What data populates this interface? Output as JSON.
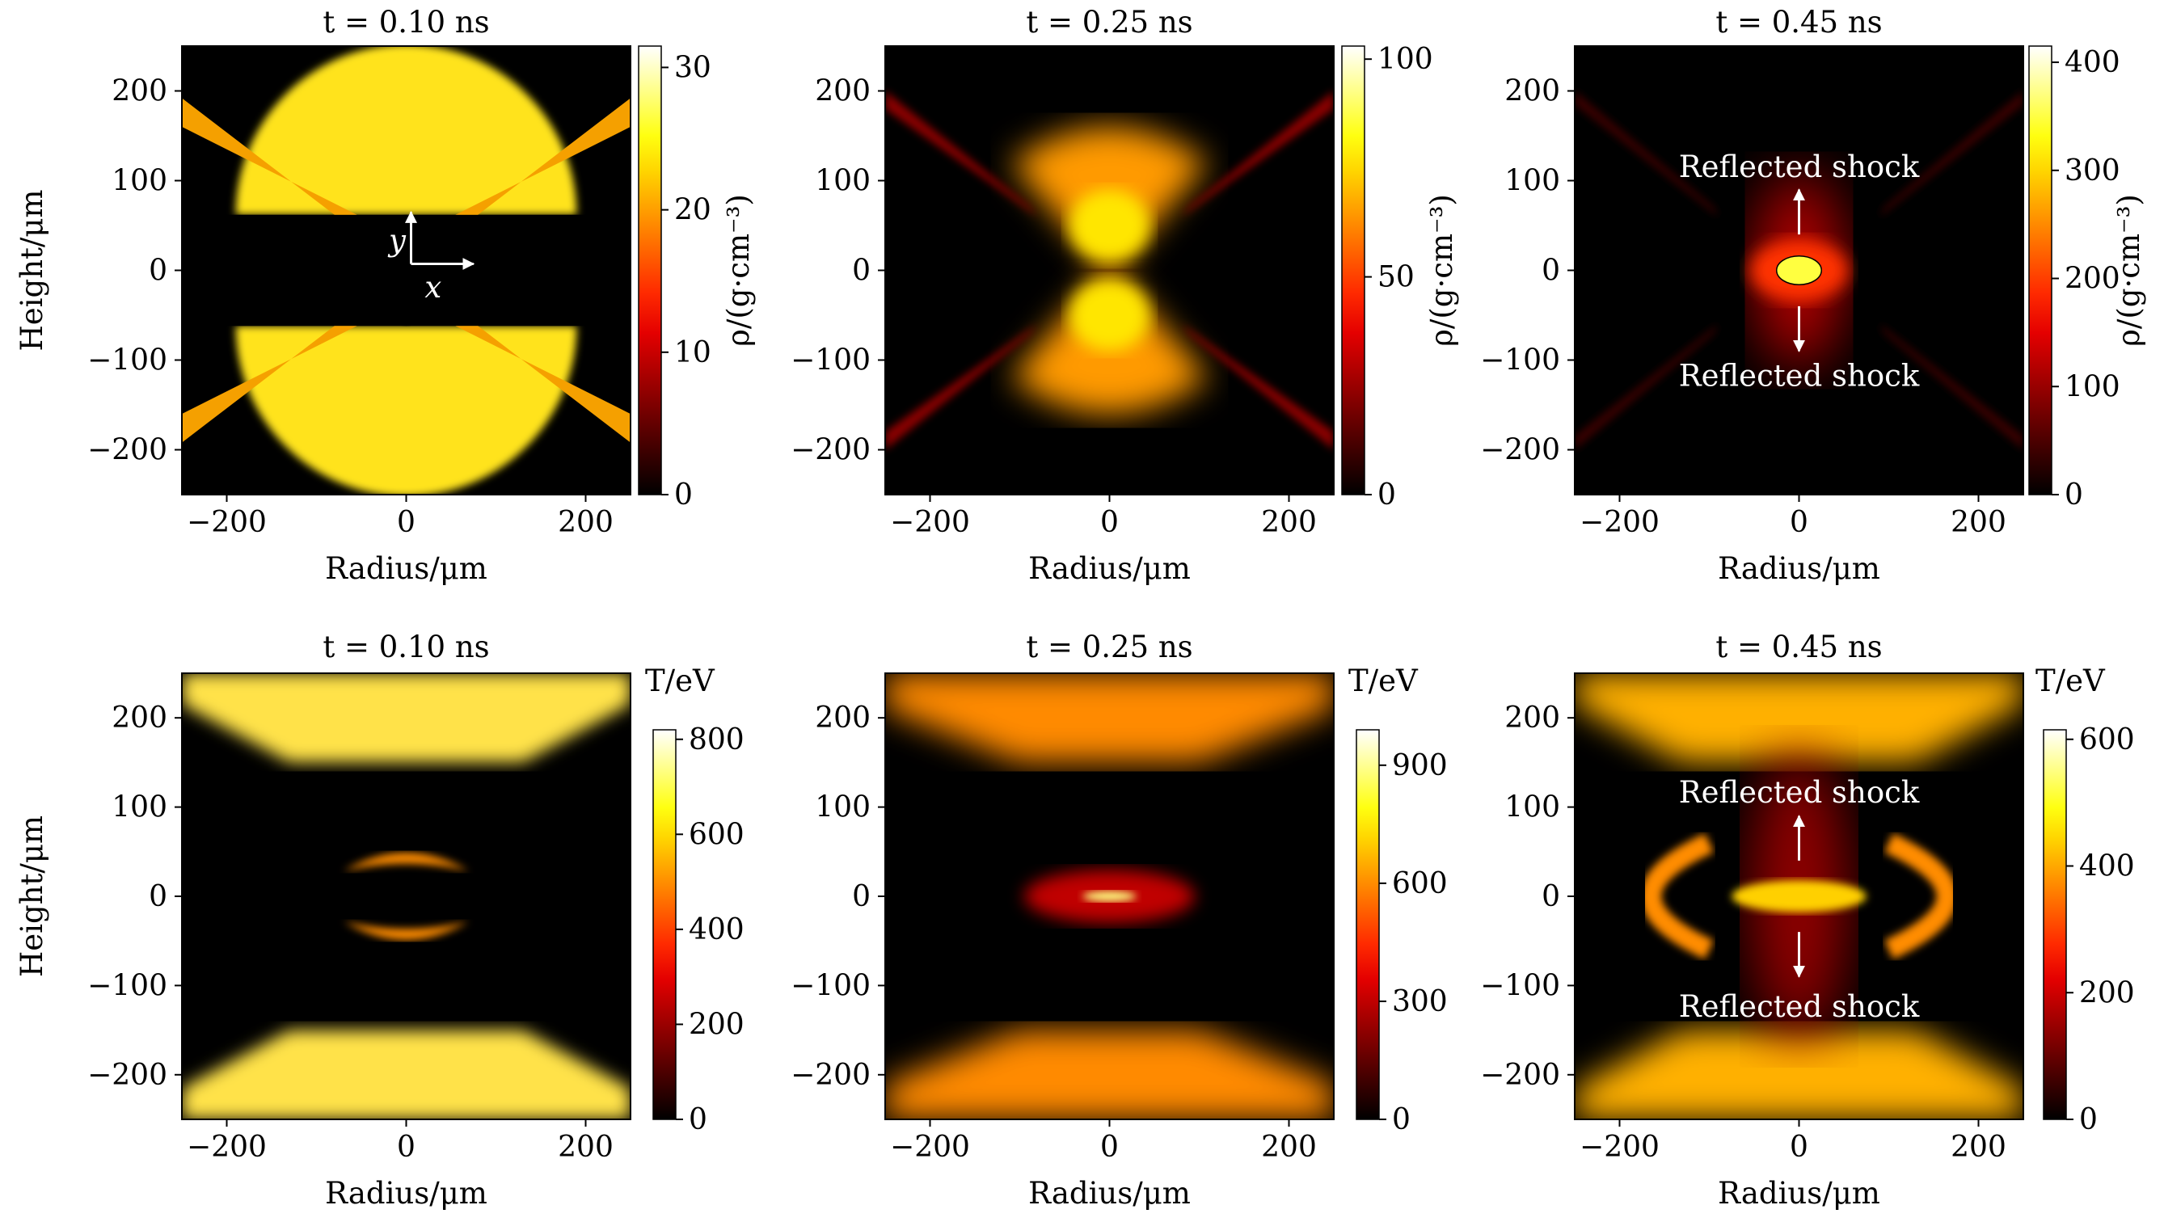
{
  "colors": {
    "background": "#ffffff",
    "colormap": "hot (black-red-yellow-white)",
    "annotation": "#ffffff"
  },
  "chart_data": [
    {
      "type": "heatmap",
      "quantity": "density",
      "title": "t = 0.10 ns",
      "xlabel": "Radius/μm",
      "ylabel": "Height/μm",
      "xlim": [
        -250,
        250
      ],
      "ylim": [
        -250,
        250
      ],
      "xticks": [
        "−200",
        "0",
        "200"
      ],
      "yticks": [
        "200",
        "100",
        "0",
        "−100",
        "−200"
      ],
      "colorbar": {
        "label": "ρ/(g·cm⁻³)",
        "range": [
          0,
          31.5
        ],
        "ticks": [
          "30",
          "20",
          "10",
          "0"
        ]
      },
      "annotations": [
        {
          "text": "y",
          "x": -10,
          "y": 22
        },
        {
          "text": "x",
          "x": 30,
          "y": -30
        }
      ]
    },
    {
      "type": "heatmap",
      "quantity": "density",
      "title": "t = 0.25 ns",
      "xlabel": "Radius/μm",
      "ylabel": "",
      "xlim": [
        -250,
        250
      ],
      "ylim": [
        -250,
        250
      ],
      "xticks": [
        "−200",
        "0",
        "200"
      ],
      "yticks": [
        "200",
        "100",
        "0",
        "−100",
        "−200"
      ],
      "colorbar": {
        "label": "ρ/(g·cm⁻³)",
        "range": [
          0,
          103
        ],
        "ticks": [
          "100",
          "50",
          "0"
        ]
      },
      "annotations": []
    },
    {
      "type": "heatmap",
      "quantity": "density",
      "title": "t = 0.45 ns",
      "xlabel": "Radius/μm",
      "ylabel": "",
      "xlim": [
        -250,
        250
      ],
      "ylim": [
        -250,
        250
      ],
      "xticks": [
        "−200",
        "0",
        "200"
      ],
      "yticks": [
        "200",
        "100",
        "0",
        "−100",
        "−200"
      ],
      "colorbar": {
        "label": "ρ/(g·cm⁻³)",
        "range": [
          0,
          415
        ],
        "ticks": [
          "400",
          "300",
          "200",
          "100",
          "0"
        ]
      },
      "annotations": [
        {
          "text": "Reflected shock",
          "x": 0,
          "y": 115
        },
        {
          "text": "Reflected shock",
          "x": 0,
          "y": -118
        }
      ]
    },
    {
      "type": "heatmap",
      "quantity": "temperature",
      "title": "t = 0.10 ns",
      "xlabel": "Radius/μm",
      "ylabel": "Height/μm",
      "xlim": [
        -250,
        250
      ],
      "ylim": [
        -250,
        250
      ],
      "xticks": [
        "−200",
        "0",
        "200"
      ],
      "yticks": [
        "200",
        "100",
        "0",
        "−100",
        "−200"
      ],
      "colorbar": {
        "label": "T/eV",
        "range": [
          0,
          820
        ],
        "ticks": [
          "800",
          "600",
          "400",
          "200",
          "0"
        ]
      },
      "annotations": []
    },
    {
      "type": "heatmap",
      "quantity": "temperature",
      "title": "t = 0.25 ns",
      "xlabel": "Radius/μm",
      "ylabel": "",
      "xlim": [
        -250,
        250
      ],
      "ylim": [
        -250,
        250
      ],
      "xticks": [
        "−200",
        "0",
        "200"
      ],
      "yticks": [
        "200",
        "100",
        "0",
        "−100",
        "−200"
      ],
      "colorbar": {
        "label": "T/eV",
        "range": [
          0,
          990
        ],
        "ticks": [
          "900",
          "600",
          "300",
          "0"
        ]
      },
      "annotations": []
    },
    {
      "type": "heatmap",
      "quantity": "temperature",
      "title": "t = 0.45 ns",
      "xlabel": "Radius/μm",
      "ylabel": "",
      "xlim": [
        -250,
        250
      ],
      "ylim": [
        -250,
        250
      ],
      "xticks": [
        "−200",
        "0",
        "200"
      ],
      "yticks": [
        "200",
        "100",
        "0",
        "−100",
        "−200"
      ],
      "colorbar": {
        "label": "T/eV",
        "range": [
          0,
          615
        ],
        "ticks": [
          "600",
          "400",
          "200",
          "0"
        ]
      },
      "annotations": [
        {
          "text": "Reflected shock",
          "x": 0,
          "y": 116
        },
        {
          "text": "Reflected shock",
          "x": 0,
          "y": -124
        }
      ]
    }
  ]
}
